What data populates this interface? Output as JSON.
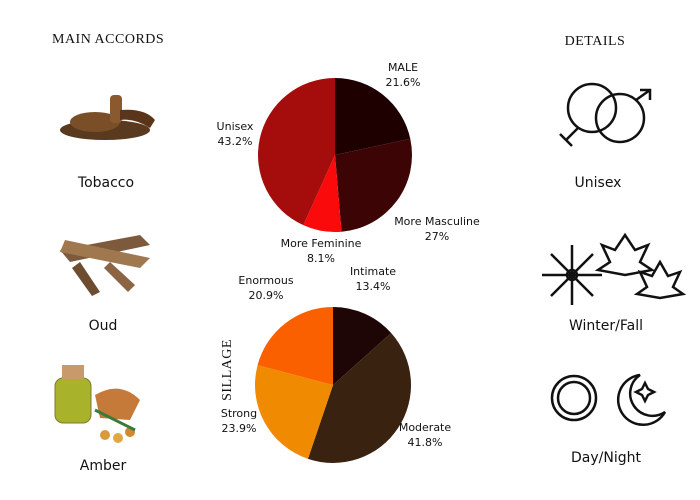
{
  "main_accords": {
    "title": "MAIN ACCORDS",
    "items": [
      "Tobacco",
      "Oud",
      "Amber"
    ]
  },
  "details": {
    "title": "DETAILS",
    "items": [
      "Unisex",
      "Winter/Fall",
      "Day/Night"
    ]
  },
  "chart_data": [
    {
      "type": "pie",
      "categories": [
        "MALE",
        "More Masculine",
        "More Feminine",
        "Unisex"
      ],
      "values": [
        21.6,
        27,
        8.1,
        43.2
      ],
      "value_labels": [
        "21.6%",
        "27%",
        "8.1%",
        "43.2%"
      ],
      "colors": [
        "#1e0000",
        "#3c0404",
        "#fa0a0a",
        "#a50d0d"
      ]
    },
    {
      "type": "pie",
      "title": "SILLAGE",
      "categories": [
        "Intimate",
        "Moderate",
        "Strong",
        "Enormous"
      ],
      "values": [
        13.4,
        41.8,
        23.9,
        20.9
      ],
      "value_labels": [
        "13.4%",
        "41.8%",
        "23.9%",
        "20.9%"
      ],
      "colors": [
        "#1e0606",
        "#3a2210",
        "#f08a00",
        "#fa6000"
      ]
    }
  ]
}
